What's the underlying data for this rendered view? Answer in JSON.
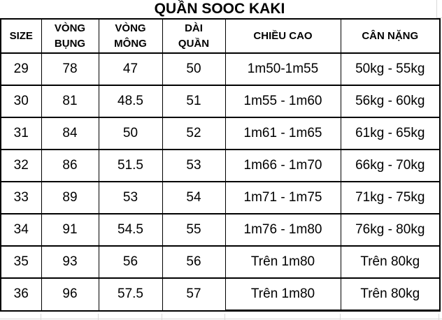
{
  "title": "QUẦN SOOC KAKI",
  "table": {
    "headers": [
      "SIZE",
      "VÒNG\nBỤNG",
      "VÒNG\nMÔNG",
      "DÀI\nQUẦN",
      "CHIỀU CAO",
      "CÂN NẶNG"
    ],
    "rows": [
      [
        "29",
        "78",
        "47",
        "50",
        "1m50-1m55",
        "50kg - 55kg"
      ],
      [
        "30",
        "81",
        "48.5",
        "51",
        "1m55 - 1m60",
        "56kg - 60kg"
      ],
      [
        "31",
        "84",
        "50",
        "52",
        "1m61 - 1m65",
        "61kg - 65kg"
      ],
      [
        "32",
        "86",
        "51.5",
        "53",
        "1m66 - 1m70",
        "66kg - 70kg"
      ],
      [
        "33",
        "89",
        "53",
        "54",
        "1m71 - 1m75",
        "71kg - 75kg"
      ],
      [
        "34",
        "91",
        "54.5",
        "55",
        "1m76 - 1m80",
        "76kg - 80kg"
      ],
      [
        "35",
        "93",
        "56",
        "56",
        "Trên 1m80",
        "Trên 80kg"
      ],
      [
        "36",
        "96",
        "57.5",
        "57",
        "Trên 1m80",
        "Trên 80kg"
      ]
    ]
  },
  "colors": {
    "text": "#000000",
    "table_border": "#000000",
    "sheet_gridline": "#d9d9d9",
    "background": "#ffffff"
  }
}
